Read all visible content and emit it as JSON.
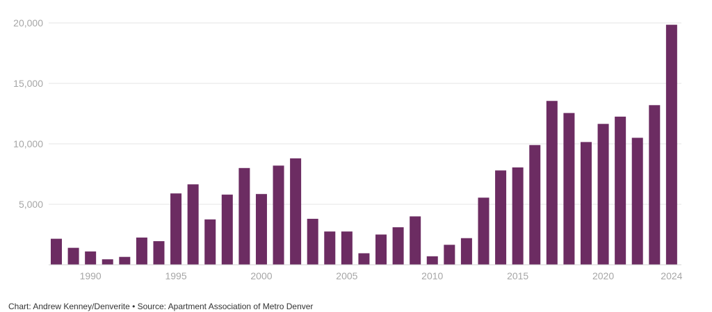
{
  "chart_data": {
    "type": "bar",
    "title": "",
    "xlabel": "",
    "ylabel": "",
    "x": [
      1988,
      1989,
      1990,
      1991,
      1992,
      1993,
      1994,
      1995,
      1996,
      1997,
      1998,
      1999,
      2000,
      2001,
      2002,
      2003,
      2004,
      2005,
      2006,
      2007,
      2008,
      2009,
      2010,
      2011,
      2012,
      2013,
      2014,
      2015,
      2016,
      2017,
      2018,
      2019,
      2020,
      2021,
      2022,
      2023,
      2024
    ],
    "values": [
      2150,
      1400,
      1100,
      450,
      650,
      2250,
      1950,
      5900,
      6650,
      3750,
      5800,
      8000,
      5850,
      8200,
      8800,
      3800,
      2750,
      2750,
      950,
      2500,
      3100,
      4000,
      700,
      1650,
      2200,
      5550,
      7800,
      8050,
      9900,
      13550,
      12550,
      10150,
      11650,
      12250,
      10500,
      13200,
      19850
    ],
    "x_ticks": [
      "1990",
      "1995",
      "2000",
      "2005",
      "2010",
      "2015",
      "2020",
      "2024"
    ],
    "y_ticks": [
      "5,000",
      "10,000",
      "15,000",
      "20,000"
    ],
    "y_tick_values": [
      5000,
      10000,
      15000,
      20000
    ],
    "ylim": [
      0,
      20000
    ],
    "grid": true,
    "bar_color": "#6c2c62",
    "footer": "Chart: Andrew Kenney/Denverite • Source: Apartment Association of Metro Denver"
  }
}
